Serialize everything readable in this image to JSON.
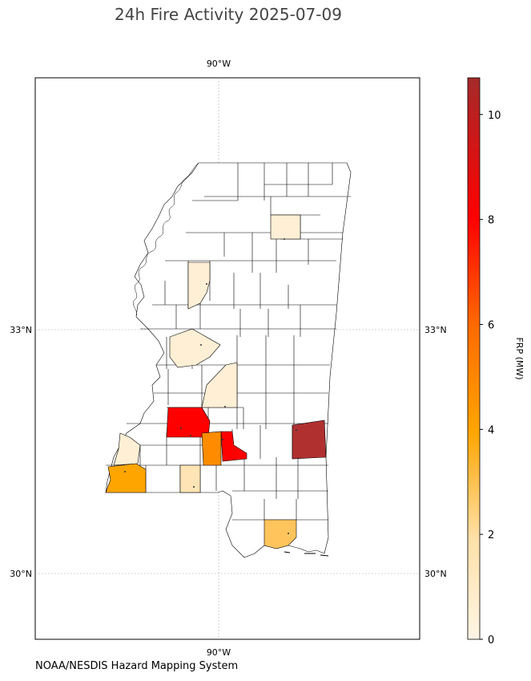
{
  "title": "24h Fire Activity 2025-07-09",
  "source_note": "NOAA/NESDIS Hazard Mapping System",
  "map": {
    "projection": "lon/lat",
    "lon_tick_top": "90°W",
    "lon_tick_bottom": "90°W",
    "lat_ticks_left": [
      "33°N",
      "30°N"
    ],
    "lat_ticks_right": [
      "33°N",
      "30°N"
    ],
    "grid": true,
    "region": "Mississippi counties"
  },
  "colorbar": {
    "label": "FRP (MW)",
    "ticks": [
      "0",
      "2",
      "4",
      "6",
      "8",
      "10"
    ],
    "min": 0,
    "max": 10.7,
    "colormap": [
      "#fff5e6",
      "#ffe0a8",
      "#ffa500",
      "#ff6a00",
      "#ff0000",
      "#a52a2a"
    ]
  },
  "colors": {
    "very_low": "#ffefd5",
    "low": "#ffe4b5",
    "low_mid": "#ffc45c",
    "mid": "#ffa500",
    "mid_high": "#ff8c00",
    "high": "#ff0000",
    "very_high": "#b03030"
  }
}
